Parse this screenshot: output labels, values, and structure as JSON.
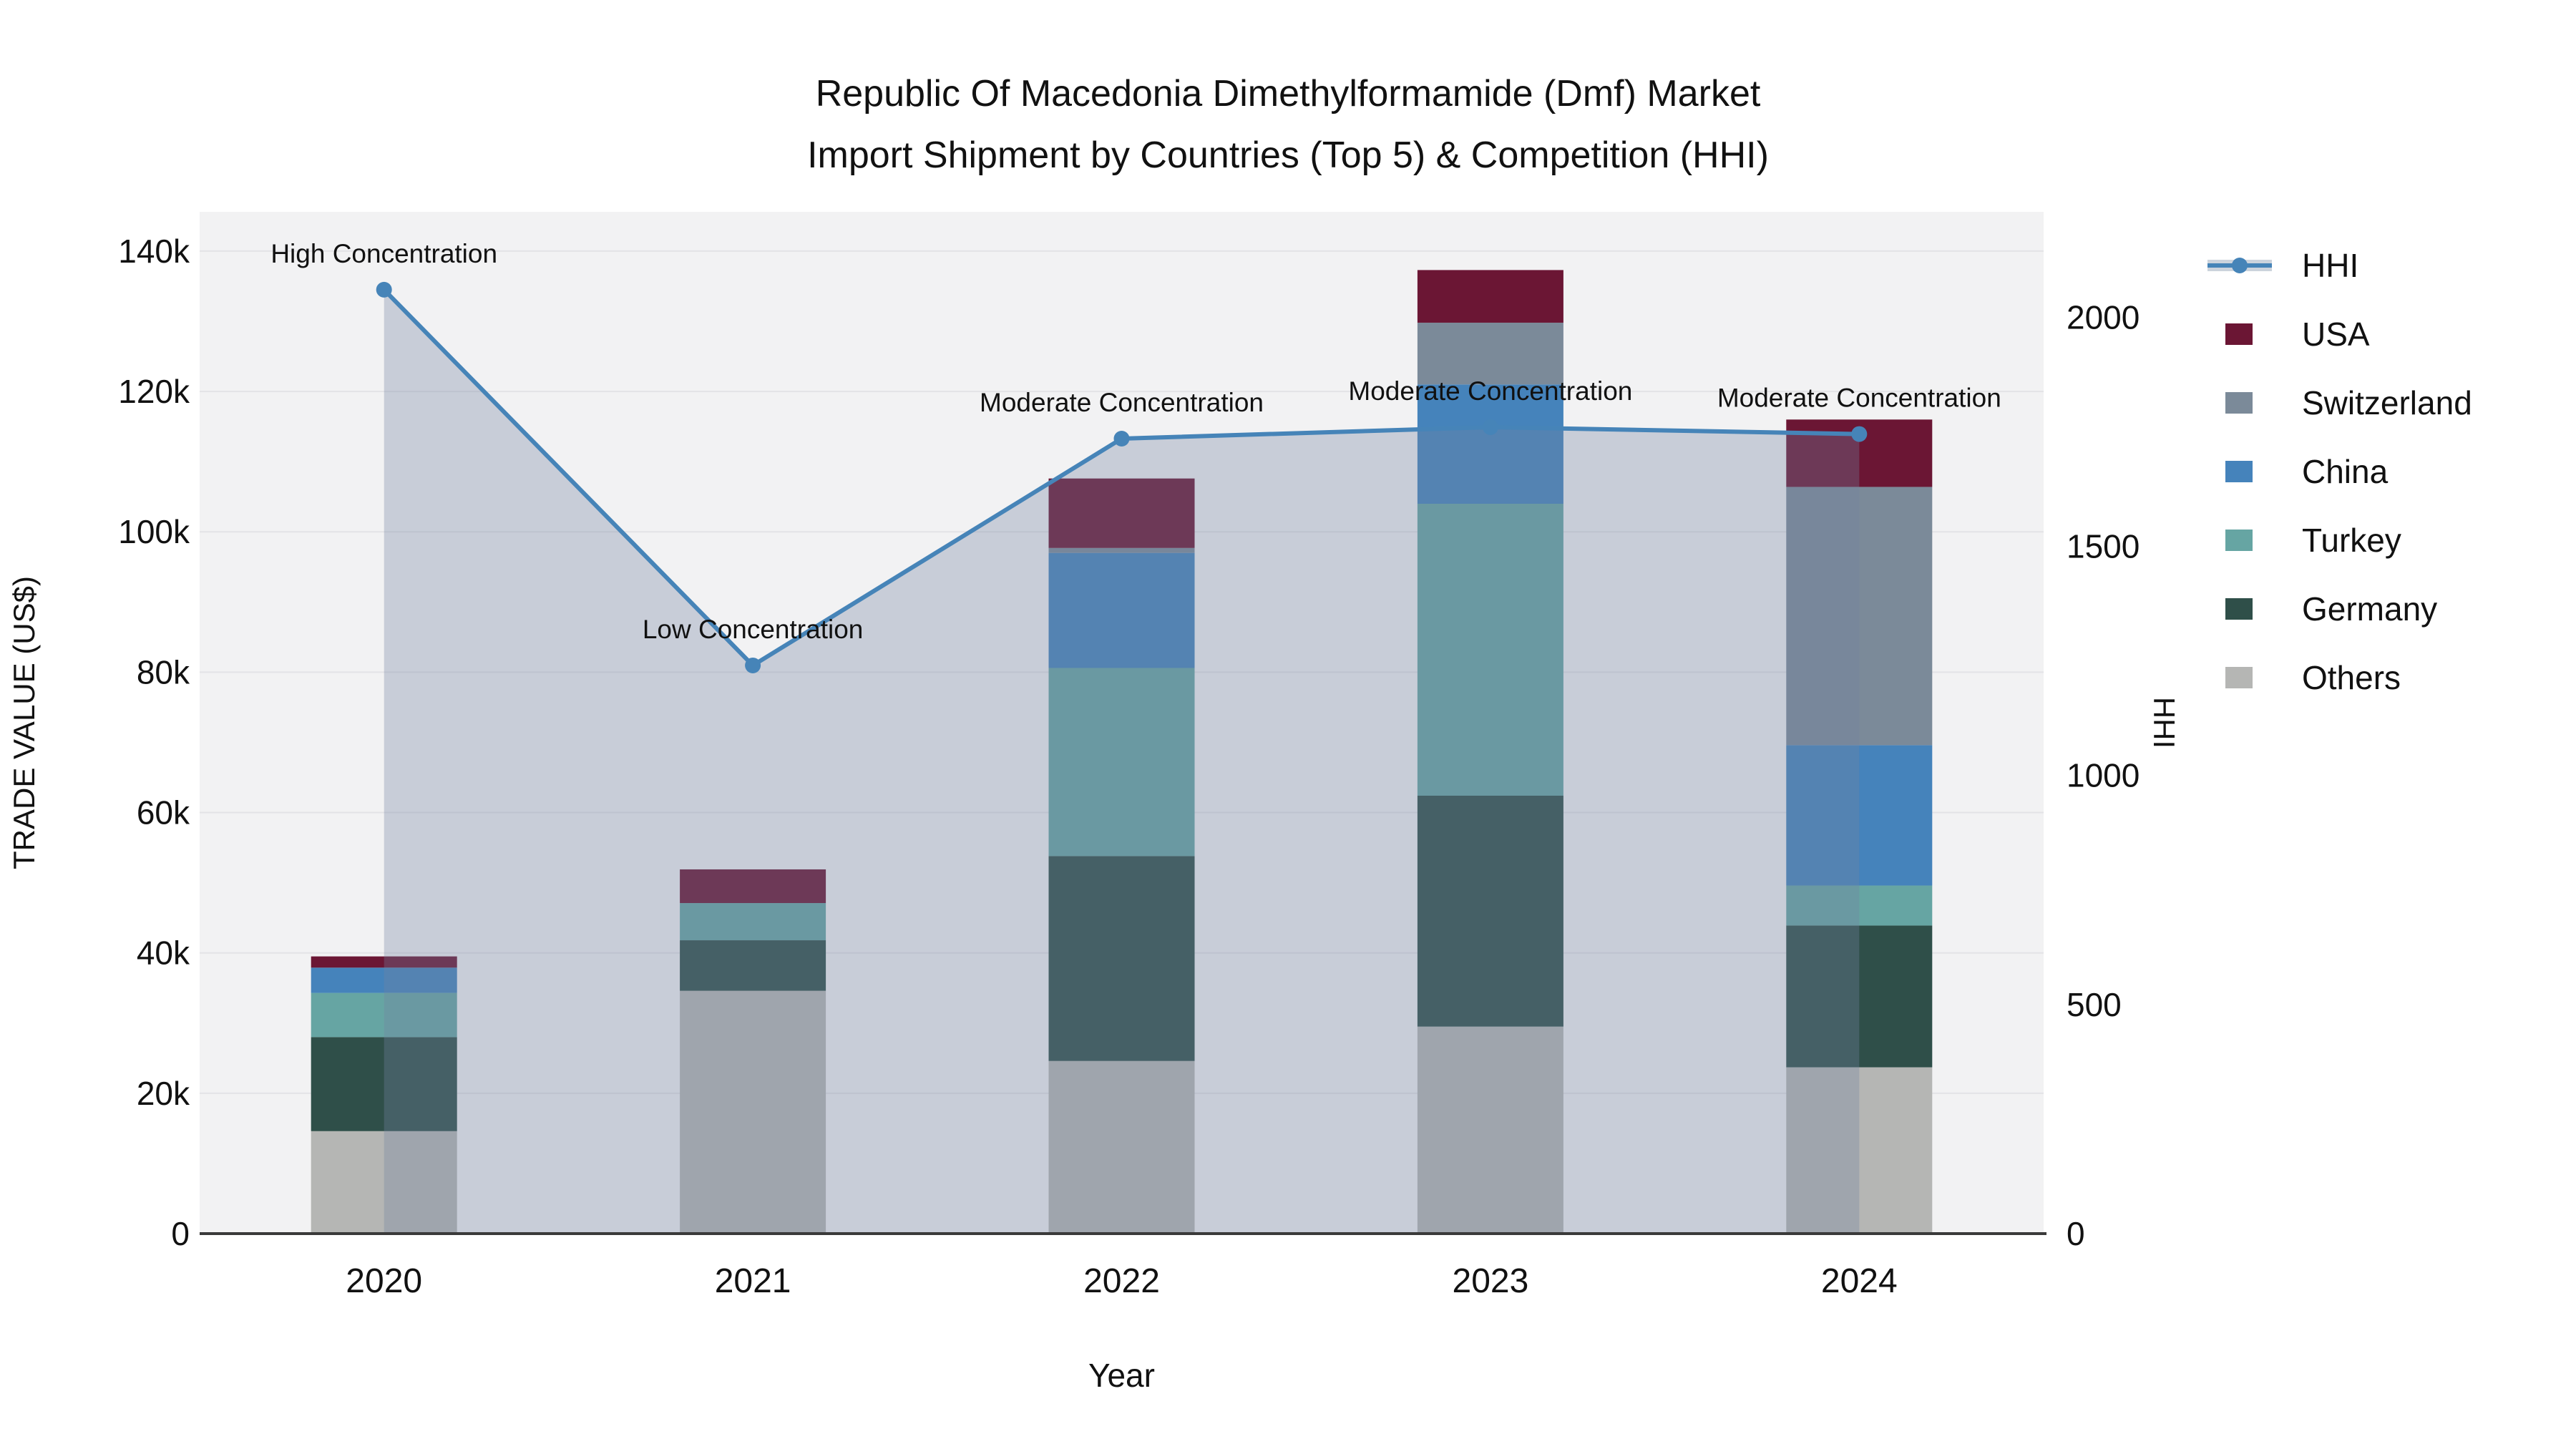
{
  "title": {
    "line1": "Republic Of Macedonia Dimethylformamide (Dmf) Market",
    "line2": "Import Shipment by Countries (Top 5) & Competition (HHI)"
  },
  "axes": {
    "left": {
      "title": "TRADE VALUE (US$)",
      "tick_labels": [
        "0",
        "20k",
        "40k",
        "60k",
        "80k",
        "100k",
        "120k",
        "140k"
      ],
      "tick_values": [
        0,
        20000,
        40000,
        60000,
        80000,
        100000,
        120000,
        140000
      ]
    },
    "right": {
      "title": "HHI",
      "tick_labels": [
        "0",
        "500",
        "1000",
        "1500",
        "2000"
      ],
      "tick_values": [
        0,
        500,
        1000,
        1500,
        2000
      ]
    },
    "x": {
      "title": "Year",
      "categories": [
        "2020",
        "2021",
        "2022",
        "2023",
        "2024"
      ]
    }
  },
  "legend": {
    "items": [
      {
        "label": "HHI",
        "type": "line",
        "color": "#4684b8"
      },
      {
        "label": "USA",
        "type": "box",
        "color": "#6b1634"
      },
      {
        "label": "Switzerland",
        "type": "box",
        "color": "#7b8a99"
      },
      {
        "label": "China",
        "type": "box",
        "color": "#4583bb"
      },
      {
        "label": "Turkey",
        "type": "box",
        "color": "#66a5a3"
      },
      {
        "label": "Germany",
        "type": "box",
        "color": "#2f4f49"
      },
      {
        "label": "Others",
        "type": "box",
        "color": "#b5b6b4"
      }
    ]
  },
  "chart_data": {
    "type": "bar+line",
    "categories": [
      "2020",
      "2021",
      "2022",
      "2023",
      "2024"
    ],
    "bar_unit": "US$ trade value, stacked by country",
    "series": [
      {
        "name": "Others",
        "color": "#b5b6b4",
        "values": [
          14600,
          34600,
          24600,
          29500,
          23700
        ]
      },
      {
        "name": "Germany",
        "color": "#2f4f49",
        "values": [
          13400,
          7200,
          29200,
          32900,
          20200
        ]
      },
      {
        "name": "Turkey",
        "color": "#66a5a3",
        "values": [
          6300,
          5300,
          26800,
          41600,
          5700
        ]
      },
      {
        "name": "China",
        "color": "#4583bb",
        "values": [
          3600,
          0,
          16400,
          17000,
          20000
        ]
      },
      {
        "name": "Switzerland",
        "color": "#7b8a99",
        "values": [
          0,
          0,
          700,
          8800,
          36800
        ]
      },
      {
        "name": "USA",
        "color": "#6b1634",
        "values": [
          1600,
          4800,
          9900,
          7500,
          9600
        ]
      }
    ],
    "stack_totals": [
      39500,
      51900,
      107600,
      137300,
      116000
    ],
    "line_series": {
      "name": "HHI",
      "axis": "right",
      "color": "#4684b8",
      "area_color": "rgba(116,132,160,0.33)",
      "values": [
        2060,
        1240,
        1735,
        1760,
        1745
      ]
    },
    "annotations": [
      "High Concentration",
      "Low Concentration",
      "Moderate Concentration",
      "Moderate Concentration",
      "Moderate Concentration"
    ],
    "ylim_left": [
      0,
      145600
    ],
    "ylim_right": [
      0,
      2230
    ],
    "grid": true,
    "legend_position": "right",
    "plot_bg": "#f2f2f3",
    "grid_color": "#e3e3e6",
    "axis_line_color": "#3a3a3a",
    "text_color": "#111111"
  }
}
